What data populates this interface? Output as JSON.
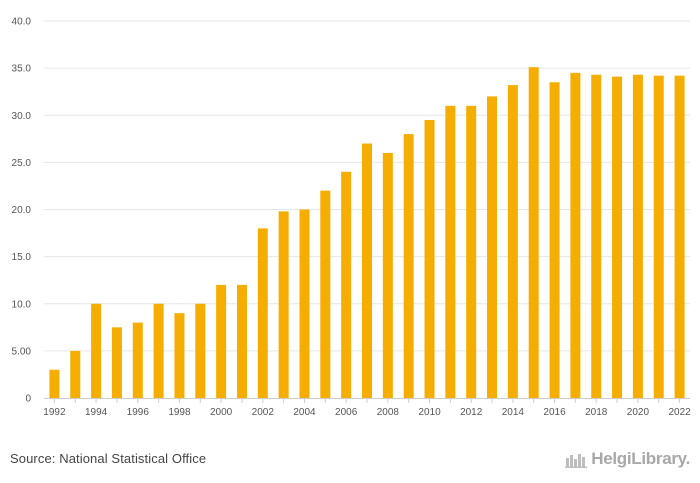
{
  "chart_data": {
    "type": "bar",
    "title": "",
    "xlabel": "",
    "ylabel": "",
    "ylim": [
      0,
      40
    ],
    "grid": true,
    "color": "#f5ae00",
    "y_ticks": [
      "0",
      "5.00",
      "10.0",
      "15.0",
      "20.0",
      "25.0",
      "30.0",
      "35.0",
      "40.0"
    ],
    "categories": [
      "1992",
      "1993",
      "1994",
      "1995",
      "1996",
      "1997",
      "1998",
      "1999",
      "2000",
      "2001",
      "2002",
      "2003",
      "2004",
      "2005",
      "2006",
      "2007",
      "2008",
      "2009",
      "2010",
      "2011",
      "2012",
      "2013",
      "2014",
      "2015",
      "2016",
      "2017",
      "2018",
      "2019",
      "2020",
      "2021",
      "2022"
    ],
    "x_tick_labels": [
      "1992",
      "",
      "1994",
      "",
      "1996",
      "",
      "1998",
      "",
      "2000",
      "",
      "2002",
      "",
      "2004",
      "",
      "2006",
      "",
      "2008",
      "",
      "2010",
      "",
      "2012",
      "",
      "2014",
      "",
      "2016",
      "",
      "2018",
      "",
      "2020",
      "",
      "2022"
    ],
    "values": [
      3.0,
      5.0,
      10.0,
      7.5,
      8.0,
      10.0,
      9.0,
      10.0,
      12.0,
      12.0,
      18.0,
      19.8,
      20.0,
      22.0,
      24.0,
      27.0,
      26.0,
      28.0,
      29.5,
      31.0,
      31.0,
      32.0,
      33.2,
      35.1,
      33.5,
      34.5,
      34.3,
      34.1,
      34.3,
      34.2,
      34.2
    ]
  },
  "footer": {
    "source": "Source: National Statistical Office",
    "logo_text": "HelgiLibrary."
  }
}
